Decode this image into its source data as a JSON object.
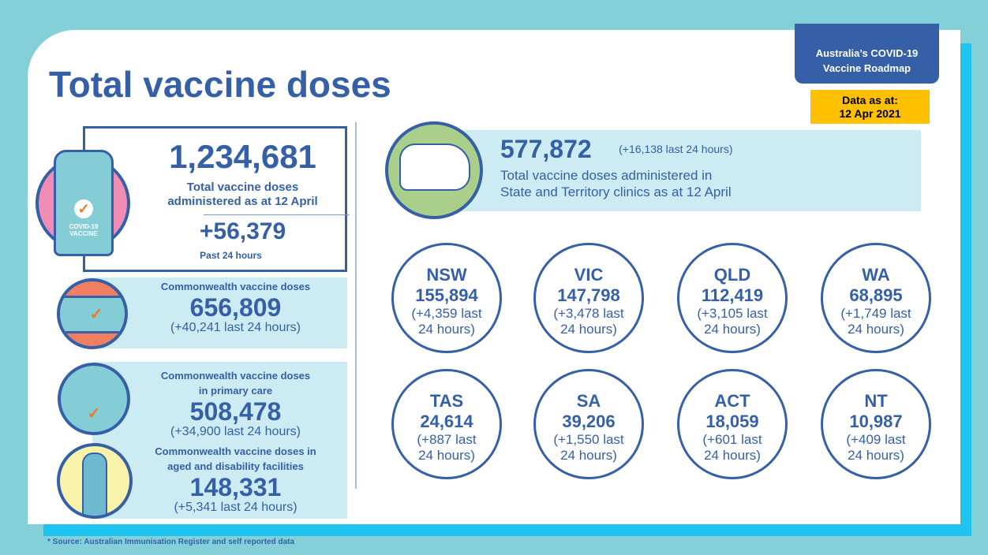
{
  "title": "Total vaccine doses",
  "roadmap": {
    "line1": "Australia’s COVID-19",
    "line2": "Vaccine Roadmap"
  },
  "data_as_at": {
    "line1": "Data as at:",
    "line2": "12 Apr 2021"
  },
  "total": {
    "value": "1,234,681",
    "label1": "Total vaccine doses",
    "label2": "administered as at 12 April",
    "delta": "+56,379",
    "delta_label": "Past 24 hours",
    "icon_text1": "COVID-19",
    "icon_text2": "VACCINE"
  },
  "commonwealth": {
    "label": "Commonwealth vaccine doses",
    "value": "656,809",
    "delta": "(+40,241 last 24 hours)"
  },
  "primary": {
    "label1": "Commonwealth vaccine doses",
    "label2": "in primary care",
    "value": "508,478",
    "delta": "(+34,900 last 24 hours)"
  },
  "aged": {
    "label1": "Commonwealth vaccine doses in",
    "label2": "aged and disability facilities",
    "value": "148,331",
    "delta": "(+5,341 last 24 hours)"
  },
  "state_total": {
    "value": "577,872",
    "delta": "(+16,138 last 24 hours)",
    "label1": "Total vaccine doses administered in",
    "label2": "State and Territory clinics as at 12 April"
  },
  "states": [
    {
      "name": "NSW",
      "value": "155,894",
      "d1": "(+4,359 last",
      "d2": "24 hours)"
    },
    {
      "name": "VIC",
      "value": "147,798",
      "d1": "(+3,478 last",
      "d2": "24 hours)"
    },
    {
      "name": "QLD",
      "value": "112,419",
      "d1": "(+3,105 last",
      "d2": "24 hours)"
    },
    {
      "name": "WA",
      "value": "68,895",
      "d1": "(+1,749 last",
      "d2": "24 hours)"
    },
    {
      "name": "TAS",
      "value": "24,614",
      "d1": "(+887 last",
      "d2": "24 hours)"
    },
    {
      "name": "SA",
      "value": "39,206",
      "d1": "(+1,550 last",
      "d2": "24 hours)"
    },
    {
      "name": "ACT",
      "value": "18,059",
      "d1": "(+601 last",
      "d2": "24 hours)"
    },
    {
      "name": "NT",
      "value": "10,987",
      "d1": "(+409 last",
      "d2": "24 hours)"
    }
  ],
  "footer": "* Source: Australian Immunisation Register and self reported data"
}
